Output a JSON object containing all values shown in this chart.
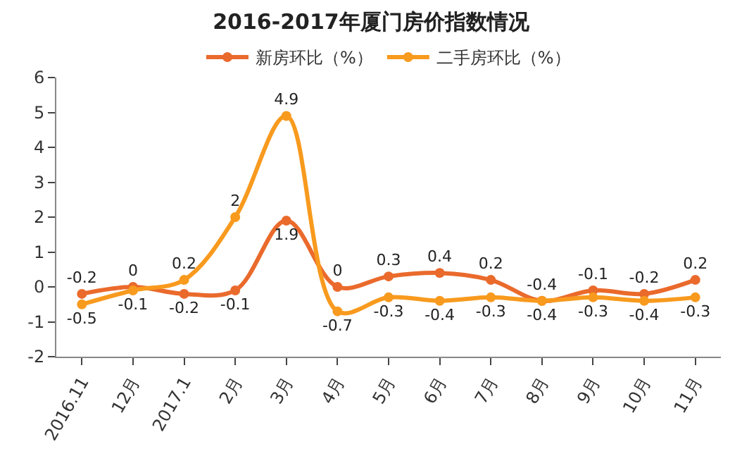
{
  "chart_data": {
    "type": "line",
    "title": "2016-2017年厦门房价指数情况",
    "categories": [
      "2016.11",
      "12月",
      "2017.1",
      "2月",
      "3月",
      "4月",
      "5月",
      "6月",
      "7月",
      "8月",
      "9月",
      "10月",
      "11月"
    ],
    "series": [
      {
        "name": "新房环比（%）",
        "color": "#ea6a2c",
        "values": [
          -0.2,
          0,
          -0.2,
          -0.1,
          1.9,
          0,
          0.3,
          0.4,
          0.2,
          -0.4,
          -0.1,
          -0.2,
          0.2
        ]
      },
      {
        "name": "二手房环比（%）",
        "color": "#f89a1e",
        "values": [
          -0.5,
          -0.1,
          0.2,
          2,
          4.9,
          -0.7,
          -0.3,
          -0.4,
          -0.3,
          -0.4,
          -0.3,
          -0.4,
          -0.3
        ]
      }
    ],
    "ylim": [
      -2,
      6
    ],
    "yticks": [
      -2,
      -1,
      0,
      1,
      2,
      3,
      4,
      5,
      6
    ],
    "legend": "top",
    "marker": "circle",
    "data_labels": true
  }
}
